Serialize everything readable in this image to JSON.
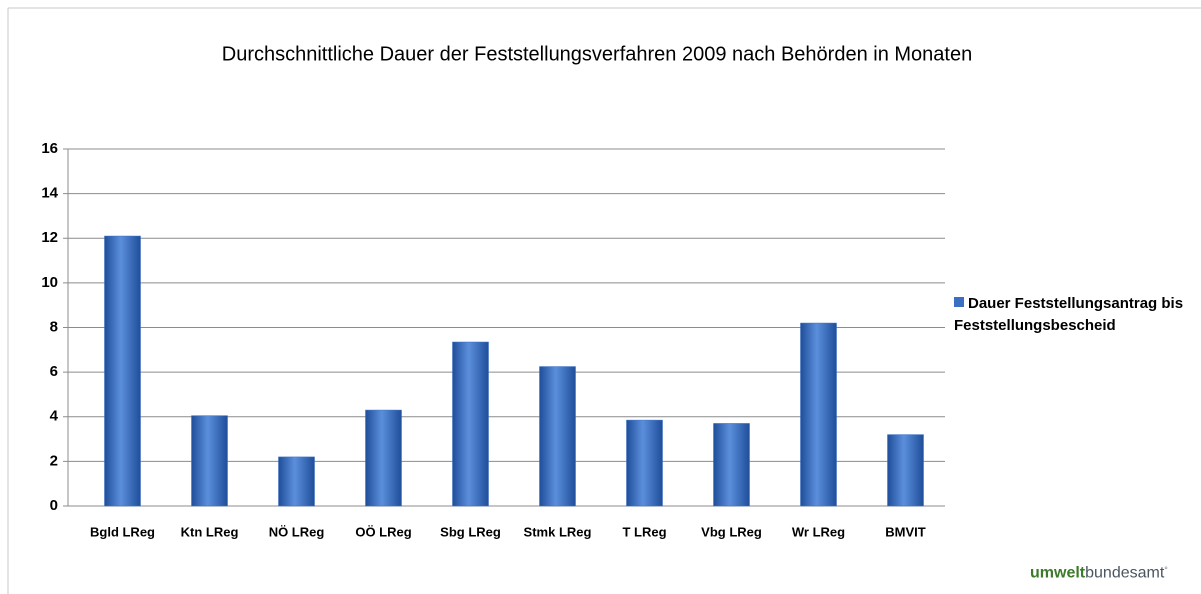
{
  "chart_data": {
    "type": "bar",
    "title": "Durchschnittliche Dauer der Feststellungsverfahren 2009 nach Behörden in Monaten",
    "categories": [
      "Bgld LReg",
      "Ktn LReg",
      "NÖ LReg",
      "OÖ LReg",
      "Sbg LReg",
      "Stmk LReg",
      "T LReg",
      "Vbg LReg",
      "Wr LReg",
      "BMVIT"
    ],
    "series": [
      {
        "name": "Dauer Feststellungsantrag bis Feststellungsbescheid",
        "color": "#3a6fc4",
        "values": [
          12.1,
          4.05,
          2.2,
          4.3,
          7.35,
          6.25,
          3.85,
          3.7,
          8.2,
          3.2
        ]
      }
    ],
    "ylim": [
      0,
      16
    ],
    "yticks": [
      0,
      2,
      4,
      6,
      8,
      10,
      12,
      14,
      16
    ],
    "grid": true,
    "legend": "right"
  },
  "logo": {
    "bold": "umwelt",
    "regular": "bundesamt"
  }
}
